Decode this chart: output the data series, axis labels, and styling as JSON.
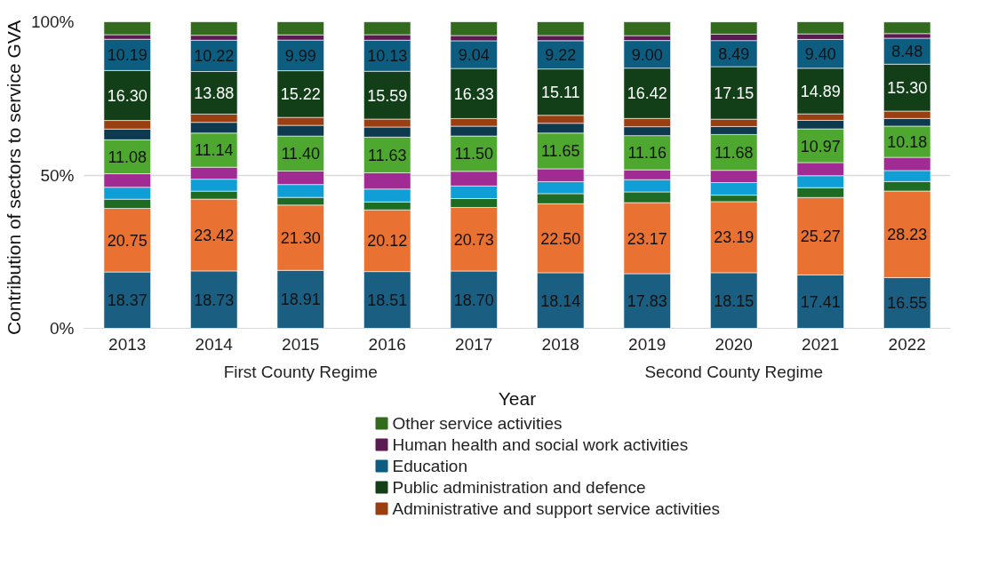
{
  "chart_data": {
    "type": "bar",
    "stacked": true,
    "ylabel": "Contribution of  sectors to service GVA",
    "xlabel": "Year",
    "categories": [
      "2013",
      "2014",
      "2015",
      "2016",
      "2017",
      "2018",
      "2019",
      "2020",
      "2021",
      "2022"
    ],
    "annotations": [
      "First County Regime",
      "Second County Regime"
    ],
    "ylim": [
      0,
      100
    ],
    "yticks": [
      {
        "value": 0,
        "label": "0%"
      },
      {
        "value": 50,
        "label": "50%"
      },
      {
        "value": 100,
        "label": "100%"
      }
    ],
    "grid": "y",
    "legend": "bottom",
    "series": [
      {
        "color": "#1a5e82",
        "values": [
          18.37,
          18.73,
          18.91,
          18.51,
          18.7,
          18.14,
          17.83,
          18.15,
          17.41,
          16.55
        ],
        "value_labels": [
          "18.37",
          "18.73",
          "18.91",
          "18.51",
          "18.70",
          "18.14",
          "17.83",
          "18.15",
          "17.41",
          "16.55"
        ]
      },
      {
        "color": "#e97132",
        "values": [
          20.75,
          23.42,
          21.3,
          20.12,
          20.73,
          22.5,
          23.17,
          23.19,
          25.27,
          28.23
        ],
        "value_labels": [
          "20.75",
          "23.42",
          "21.30",
          "20.12",
          "20.73",
          "22.50",
          "23.17",
          "23.19",
          "25.27",
          "28.23"
        ]
      },
      {
        "color": "#1e6b24",
        "values": [
          3.0,
          2.6,
          2.5,
          2.6,
          2.9,
          3.3,
          3.5,
          2.1,
          3.2,
          3.1
        ]
      },
      {
        "color": "#0f9ed5",
        "values": [
          3.9,
          3.9,
          4.2,
          4.2,
          4.1,
          3.9,
          4.0,
          4.1,
          3.9,
          3.6
        ]
      },
      {
        "color": "#a02b93",
        "values": [
          4.4,
          3.9,
          4.4,
          5.3,
          4.8,
          4.2,
          3.2,
          4.0,
          4.3,
          4.3
        ]
      },
      {
        "color": "#4ea72e",
        "values": [
          11.08,
          11.14,
          11.4,
          11.63,
          11.5,
          11.65,
          11.16,
          11.68,
          10.97,
          10.18
        ],
        "value_labels": [
          "11.08",
          "11.14",
          "11.40",
          "11.63",
          "11.50",
          "11.65",
          "11.16",
          "11.68",
          "10.97",
          "10.18"
        ]
      },
      {
        "color": "#0e3a50",
        "values": [
          3.5,
          3.5,
          3.5,
          3.3,
          3.2,
          3.2,
          2.9,
          2.6,
          2.8,
          2.5
        ]
      },
      {
        "name": "Administrative and support service activities",
        "color": "#9a3f12",
        "values": [
          2.8,
          2.7,
          2.6,
          2.6,
          2.5,
          2.6,
          2.7,
          2.4,
          2.1,
          2.4
        ]
      },
      {
        "name": "Public administration and defence",
        "color": "#123f18",
        "values": [
          16.3,
          13.88,
          15.22,
          15.59,
          16.33,
          15.11,
          16.42,
          17.15,
          14.89,
          15.3
        ],
        "value_labels": [
          "16.30",
          "13.88",
          "15.22",
          "15.59",
          "16.33",
          "15.11",
          "16.42",
          "17.15",
          "14.89",
          "15.30"
        ]
      },
      {
        "name": "Education",
        "color": "#0c5d80",
        "values": [
          10.19,
          10.22,
          9.99,
          10.13,
          9.04,
          9.22,
          9.0,
          8.49,
          9.4,
          8.48
        ],
        "value_labels": [
          "10.19",
          "10.22",
          "9.99",
          "10.13",
          "9.04",
          "9.22",
          "9.00",
          "8.49",
          "9.40",
          "8.48"
        ]
      },
      {
        "name": "Human health and social work activities",
        "color": "#5c1a52",
        "values": [
          1.5,
          1.6,
          1.7,
          1.8,
          1.7,
          1.7,
          1.6,
          2.1,
          1.8,
          1.5
        ]
      },
      {
        "name": "Other service activities",
        "color": "#336b1e",
        "values": [
          4.2,
          4.4,
          4.3,
          4.2,
          4.5,
          4.5,
          4.5,
          4.0,
          4.0,
          3.8
        ]
      }
    ]
  }
}
